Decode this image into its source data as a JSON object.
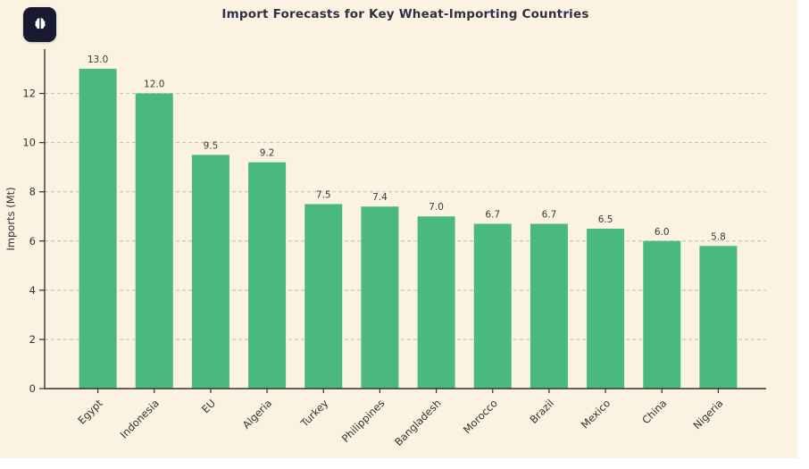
{
  "badge": {
    "icon": "brain-icon"
  },
  "chart_data": {
    "type": "bar",
    "title": "Import Forecasts for Key Wheat-Importing Countries",
    "categories": [
      "Egypt",
      "Indonesia",
      "EU",
      "Algeria",
      "Turkey",
      "Philippines",
      "Bangladesh",
      "Morocco",
      "Brazil",
      "Mexico",
      "China",
      "Nigeria"
    ],
    "values": [
      13.0,
      12.0,
      9.5,
      9.2,
      7.5,
      7.4,
      7.0,
      6.7,
      6.7,
      6.5,
      6.0,
      5.8
    ],
    "xlabel": "",
    "ylabel": "Imports (Mt)",
    "ylim": [
      0,
      13.8
    ],
    "yticks": [
      0,
      2,
      4,
      6,
      8,
      10,
      12
    ],
    "grid": true,
    "grid_style": "dashed",
    "legend": false,
    "colors": {
      "bar": "#4ab97d",
      "background": "#fbf2e2",
      "title": "#2f3047",
      "axis": "#333333",
      "grid": "#c2bcb1",
      "badge_bg": "#191931",
      "badge_fg": "#ffffff"
    }
  }
}
